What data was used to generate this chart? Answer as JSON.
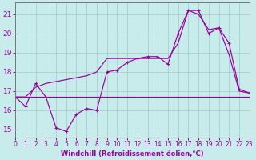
{
  "xlabel": "Windchill (Refroidissement éolien,°C)",
  "xlim": [
    0,
    23
  ],
  "ylim": [
    14.6,
    21.6
  ],
  "yticks": [
    15,
    16,
    17,
    18,
    19,
    20,
    21
  ],
  "xticks": [
    0,
    1,
    2,
    3,
    4,
    5,
    6,
    7,
    8,
    9,
    10,
    11,
    12,
    13,
    14,
    15,
    16,
    17,
    18,
    19,
    20,
    21,
    22,
    23
  ],
  "bg_color": "#c8ecec",
  "grid_color": "#b0d8d8",
  "line_color": "#990099",
  "line1_x": [
    0,
    1,
    2,
    3,
    4,
    5,
    6,
    7,
    8,
    9,
    10,
    11,
    12,
    13,
    14,
    15,
    16,
    17,
    18,
    19,
    20,
    21,
    22,
    23
  ],
  "line1_y": [
    16.7,
    16.2,
    17.4,
    16.7,
    15.1,
    14.9,
    15.8,
    16.1,
    16.0,
    18.0,
    18.1,
    18.5,
    18.7,
    18.8,
    18.8,
    18.4,
    20.0,
    21.2,
    21.2,
    20.0,
    20.3,
    19.5,
    17.1,
    16.9
  ],
  "line2_x": [
    0,
    1,
    2,
    3,
    4,
    5,
    6,
    7,
    8,
    9,
    10,
    11,
    12,
    13,
    14,
    15,
    16,
    17,
    18,
    19,
    20,
    21,
    22,
    23
  ],
  "line2_y": [
    16.7,
    16.7,
    17.2,
    17.4,
    17.5,
    17.6,
    17.7,
    17.8,
    18.0,
    18.7,
    18.7,
    18.7,
    18.7,
    18.7,
    18.7,
    18.7,
    19.5,
    21.2,
    21.0,
    20.2,
    20.3,
    18.9,
    17.0,
    16.9
  ],
  "line3_x": [
    0,
    1,
    2,
    3,
    4,
    5,
    6,
    7,
    8,
    9,
    10,
    11,
    12,
    13,
    14,
    15,
    16,
    17,
    18,
    19,
    20,
    21,
    22,
    23
  ],
  "line3_y": [
    16.7,
    16.7,
    16.7,
    16.7,
    16.7,
    16.7,
    16.7,
    16.7,
    16.7,
    16.7,
    16.7,
    16.7,
    16.7,
    16.7,
    16.7,
    16.7,
    16.7,
    16.7,
    16.7,
    16.7,
    16.7,
    16.7,
    16.7,
    16.7
  ]
}
